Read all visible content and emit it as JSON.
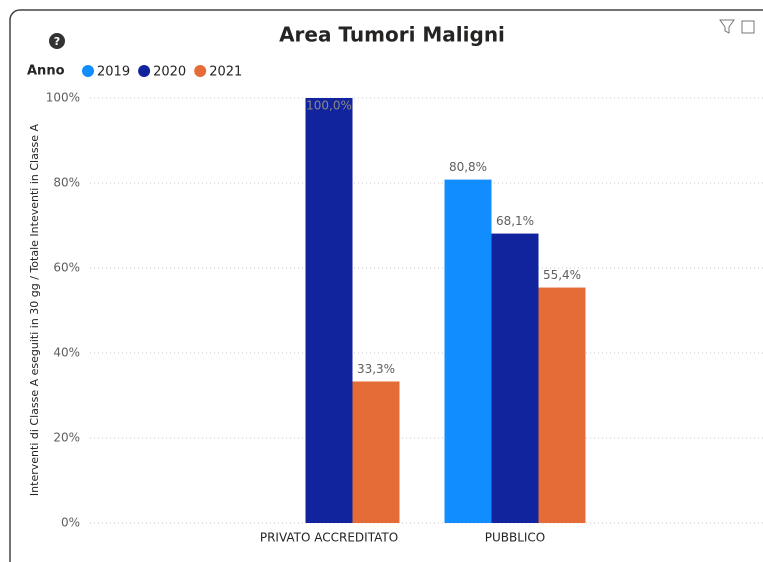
{
  "chart_data": {
    "type": "bar",
    "title": "Area Tumori Maligni",
    "legend_title": "Anno",
    "y_label": "Interventi di Classe A eseguiti in 30 gg / Totale Inteventi in Classe A",
    "categories": [
      "PRIVATO ACCREDITATO",
      "PUBBLICO"
    ],
    "series": [
      {
        "name": "2019",
        "color": "#118DFF",
        "values": [
          null,
          80.8
        ],
        "value_labels": [
          null,
          "80,8%"
        ]
      },
      {
        "name": "2020",
        "color": "#12239E",
        "values": [
          100,
          68.1
        ],
        "value_labels": [
          "100,0%",
          "68,1%"
        ]
      },
      {
        "name": "2021",
        "color": "#E66C37",
        "values": [
          33.3,
          55.4
        ],
        "value_labels": [
          "33,3%",
          "55,4%"
        ]
      }
    ],
    "ylim": [
      0,
      100
    ],
    "yticks": [
      {
        "value": 0,
        "label": "0%"
      },
      {
        "value": 20,
        "label": "20%"
      },
      {
        "value": 40,
        "label": "40%"
      },
      {
        "value": 60,
        "label": "60%"
      },
      {
        "value": 80,
        "label": "80%"
      },
      {
        "value": 100,
        "label": "100%"
      }
    ],
    "grid": true
  }
}
